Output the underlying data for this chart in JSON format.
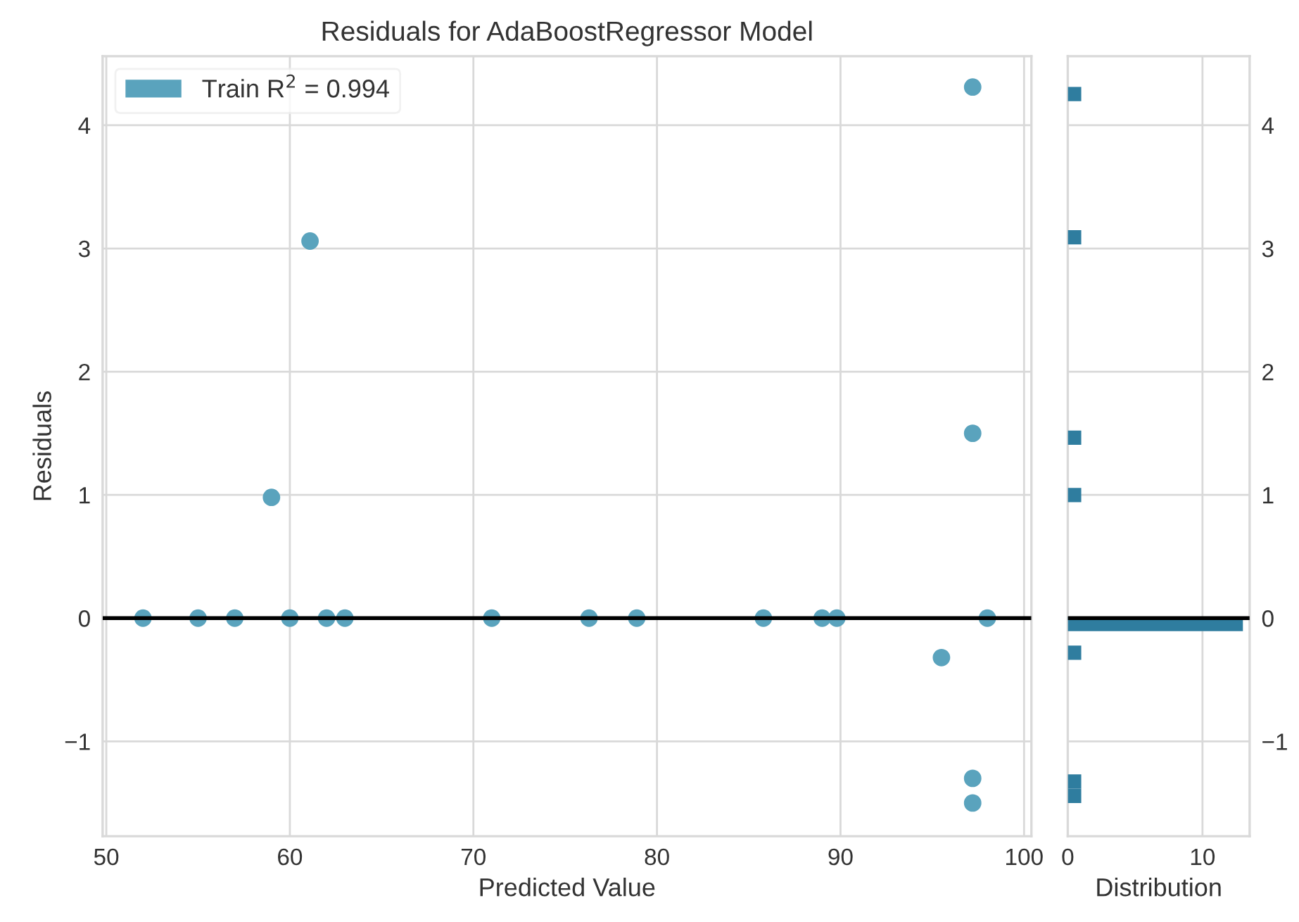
{
  "chart_data": [
    {
      "type": "scatter",
      "title": "Residuals for AdaBoostRegressor Model",
      "xlabel": "Predicted Value",
      "ylabel": "Residuals",
      "series": [
        {
          "name": "Train R$^{2}$ = 0.994",
          "color": "#5aa3bd",
          "x": [
            52,
            55,
            57,
            60,
            62,
            63,
            71,
            76.3,
            78.9,
            85.8,
            89,
            89.8,
            98,
            95.5,
            97.2,
            97.2,
            97.2,
            97.2,
            59,
            61.1
          ],
          "values": [
            0,
            0,
            0,
            0,
            0,
            0,
            0,
            0,
            0,
            0,
            0,
            0,
            0,
            -0.32,
            4.31,
            1.5,
            -1.3,
            -1.5,
            0.98,
            3.06
          ]
        }
      ],
      "xlim": [
        49.8,
        100.4
      ],
      "xticks": [
        50,
        60,
        70,
        80,
        90,
        100
      ],
      "ylim": [
        -1.77,
        4.56
      ],
      "yticks": [
        -1,
        0,
        1,
        2,
        3,
        4
      ],
      "ref_lines": [
        {
          "axis": "y",
          "value": 0,
          "color": "#000000"
        }
      ],
      "grid": true,
      "legend": "top left",
      "marker": "circle"
    },
    {
      "type": "histogram",
      "orientation": "horizontal",
      "xlabel": "Distribution",
      "color": "#2f7d9f",
      "bins": [
        -1.5,
        -1.384,
        -1.268,
        -1.151,
        -1.035,
        -0.919,
        -0.803,
        -0.686,
        -0.57,
        -0.454,
        -0.338,
        -0.222,
        -0.105,
        0.011,
        0.127,
        0.243,
        0.36,
        0.476,
        0.592,
        0.708,
        0.824,
        0.941,
        1.057,
        1.173,
        1.289,
        1.406,
        1.522,
        1.638,
        1.754,
        1.87,
        1.987,
        2.103,
        2.219,
        2.335,
        2.451,
        2.568,
        2.684,
        2.8,
        2.916,
        3.033,
        3.149,
        3.265,
        3.381,
        3.497,
        3.614,
        3.73,
        3.846,
        3.962,
        4.079,
        4.195,
        4.311
      ],
      "values": [
        1,
        1,
        0,
        0,
        0,
        0,
        0,
        0,
        0,
        0,
        1,
        0,
        13,
        0,
        0,
        0,
        0,
        0,
        0,
        0,
        0,
        1,
        0,
        0,
        0,
        1,
        0,
        0,
        0,
        0,
        0,
        0,
        0,
        0,
        0,
        0,
        0,
        0,
        0,
        1,
        0,
        0,
        0,
        0,
        0,
        0,
        0,
        0,
        0,
        1
      ],
      "xlim": [
        0,
        13.5
      ],
      "xticks": [
        0,
        10
      ],
      "ylim": [
        -1.77,
        4.56
      ],
      "yticks": [
        -1,
        0,
        1,
        2,
        3,
        4
      ],
      "ref_lines": [
        {
          "axis": "y",
          "value": 0,
          "color": "#000000"
        }
      ],
      "grid": true
    }
  ]
}
